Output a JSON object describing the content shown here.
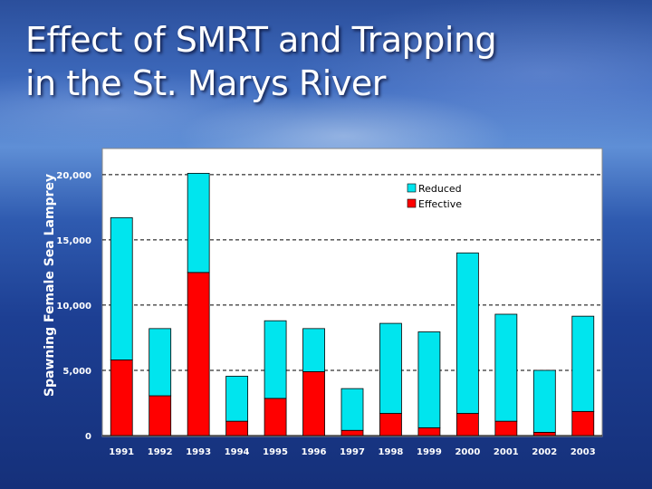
{
  "slide": {
    "title_line1": "Effect of SMRT and Trapping",
    "title_line2": "in the St. Marys River"
  },
  "chart_data": {
    "type": "bar",
    "stacked": true,
    "title": "",
    "xlabel": "",
    "ylabel": "Spawning Female Sea Lamprey",
    "ylim": [
      0,
      22000
    ],
    "yticks": [
      0,
      5000,
      10000,
      15000,
      20000
    ],
    "ytick_labels": [
      "0",
      "5,000",
      "10,000",
      "15,000",
      "20,000"
    ],
    "grid": true,
    "legend_position": "top-right",
    "categories": [
      "1991",
      "1992",
      "1993",
      "1994",
      "1995",
      "1996",
      "1997",
      "1998",
      "1999",
      "2000",
      "2001",
      "2002",
      "2003"
    ],
    "series": [
      {
        "name": "Effective",
        "color": "#ff0000",
        "values": [
          5800,
          3050,
          12500,
          1100,
          2850,
          4900,
          400,
          1700,
          600,
          1700,
          1100,
          250,
          1850
        ]
      },
      {
        "name": "Reduced",
        "color": "#00e5ee",
        "values": [
          10900,
          5150,
          7600,
          3450,
          5950,
          3300,
          3200,
          6900,
          7350,
          12300,
          8200,
          4750,
          7300
        ]
      }
    ]
  }
}
